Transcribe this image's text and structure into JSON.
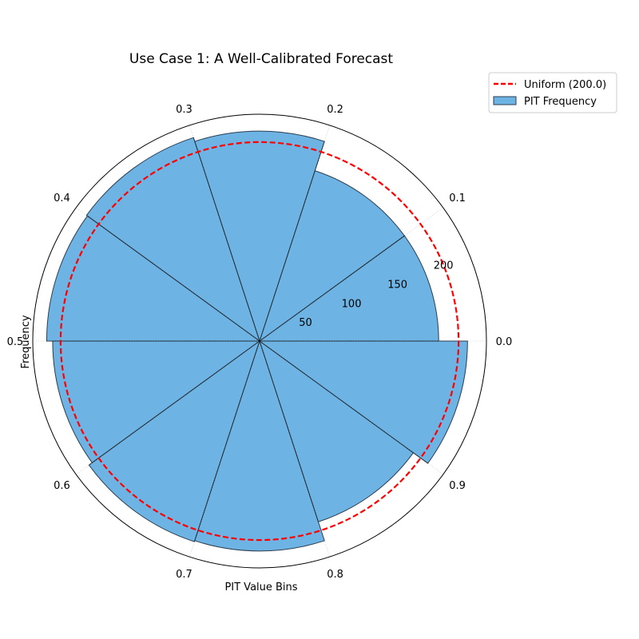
{
  "chart_data": {
    "type": "bar",
    "polar": true,
    "title": "Use Case 1: A Well-Calibrated Forecast",
    "xlabel": "PIT Value Bins",
    "ylabel": "Frequency",
    "categories": [
      "0.0",
      "0.1",
      "0.2",
      "0.3",
      "0.4",
      "0.5",
      "0.6",
      "0.7",
      "0.8",
      "0.9"
    ],
    "series": [
      {
        "name": "PIT Frequency",
        "values": [
          180,
          180,
          211,
          215,
          214,
          208,
          212,
          211,
          191,
          209
        ]
      }
    ],
    "reference_line": {
      "name": "Uniform (200.0)",
      "value": 200
    },
    "rlim": [
      0,
      228
    ],
    "radial_ticks": [
      "50",
      "100",
      "150",
      "200"
    ],
    "radial_tick_values": [
      50,
      100,
      150,
      200
    ],
    "grid": true,
    "legend_position": "top-right",
    "colors": {
      "bar_fill": "#6db3e3",
      "bar_edge": "#2c3e50",
      "uniform_line": "#ff0000"
    }
  }
}
